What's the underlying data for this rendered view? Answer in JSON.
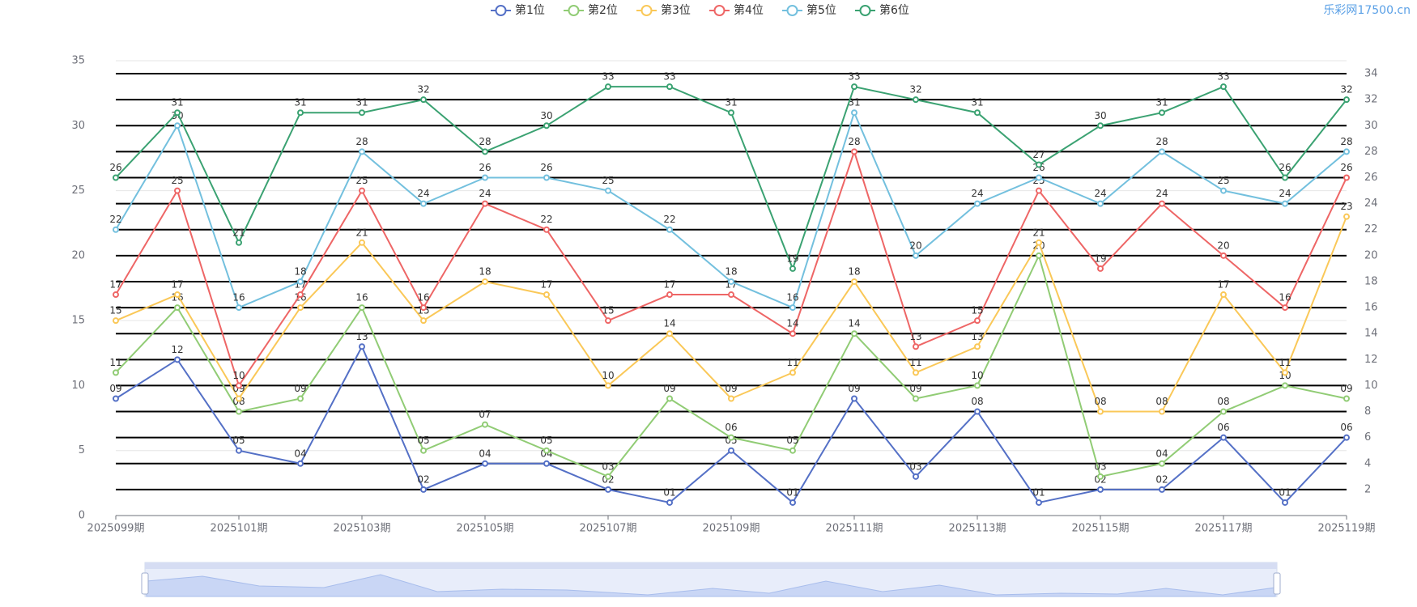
{
  "watermark": "乐彩网17500.cn",
  "chart_data": {
    "type": "line",
    "categories": [
      "2025099期",
      null,
      "2025101期",
      null,
      "2025103期",
      null,
      "2025105期",
      null,
      "2025107期",
      null,
      "2025109期",
      null,
      "2025111期",
      null,
      "2025113期",
      null,
      "2025115期",
      null,
      "2025117期",
      null,
      "2025119期"
    ],
    "series": [
      {
        "name": "第1位",
        "color": "#5470c6",
        "values": [
          9,
          12,
          5,
          4,
          13,
          2,
          4,
          4,
          2,
          1,
          5,
          1,
          9,
          3,
          8,
          1,
          2,
          2,
          6,
          1,
          6
        ],
        "value_labels": [
          "09",
          "12",
          "05",
          "04",
          "13",
          "02",
          "04",
          "04",
          "02",
          "01",
          "05",
          "01",
          "09",
          "03",
          "08",
          "01",
          "02",
          "02",
          "06",
          "01",
          "06"
        ]
      },
      {
        "name": "第2位",
        "color": "#91cc75",
        "values": [
          11,
          16,
          8,
          9,
          16,
          5,
          7,
          5,
          3,
          9,
          6,
          5,
          14,
          9,
          10,
          20,
          3,
          4,
          8,
          10,
          9
        ],
        "value_labels": [
          "11",
          "16",
          "08",
          "09",
          "16",
          "05",
          "07",
          "05",
          "03",
          "09",
          "06",
          "05",
          "14",
          "09",
          "10",
          "20",
          "03",
          "04",
          "08",
          "10",
          "09"
        ]
      },
      {
        "name": "第3位",
        "color": "#fac858",
        "values": [
          15,
          17,
          9,
          16,
          21,
          15,
          18,
          17,
          10,
          14,
          9,
          11,
          18,
          11,
          13,
          21,
          8,
          8,
          17,
          11,
          23
        ],
        "value_labels": [
          "15",
          "17",
          "09",
          "16",
          "21",
          "15",
          "18",
          "17",
          "10",
          "14",
          "09",
          "11",
          "18",
          "11",
          "13",
          "21",
          "08",
          "08",
          "17",
          "11",
          "23"
        ]
      },
      {
        "name": "第4位",
        "color": "#ee6666",
        "values": [
          17,
          25,
          10,
          17,
          25,
          16,
          24,
          22,
          15,
          17,
          17,
          14,
          28,
          13,
          15,
          25,
          19,
          24,
          20,
          16,
          26
        ],
        "value_labels": [
          "17",
          "25",
          "10",
          "17",
          "25",
          "16",
          "24",
          "22",
          "15",
          "17",
          "17",
          "14",
          "28",
          "13",
          "15",
          "25",
          "19",
          "24",
          "20",
          "16",
          "26"
        ]
      },
      {
        "name": "第5位",
        "color": "#73c0de",
        "values": [
          22,
          30,
          16,
          18,
          28,
          24,
          26,
          26,
          25,
          22,
          18,
          16,
          31,
          20,
          24,
          26,
          24,
          28,
          25,
          24,
          28
        ],
        "value_labels": [
          "22",
          "30",
          "16",
          "18",
          "28",
          "24",
          "26",
          "26",
          "25",
          "22",
          "18",
          "16",
          "31",
          "20",
          "24",
          "26",
          "24",
          "28",
          "25",
          "24",
          "28"
        ]
      },
      {
        "name": "第6位",
        "color": "#3ba272",
        "values": [
          26,
          31,
          21,
          31,
          31,
          32,
          28,
          30,
          33,
          33,
          31,
          19,
          33,
          32,
          31,
          27,
          30,
          31,
          33,
          26,
          32
        ],
        "value_labels": [
          "26",
          "31",
          "21",
          "31",
          "31",
          "32",
          "28",
          "30",
          "33",
          "33",
          "31",
          "19",
          "33",
          "32",
          "31",
          "27",
          "30",
          "31",
          "33",
          "26",
          "32"
        ]
      }
    ],
    "ylim": [
      0,
      35
    ],
    "yticks": [
      0,
      5,
      10,
      15,
      20,
      25,
      30,
      35
    ],
    "y2lim": [
      0,
      35
    ],
    "y2ticks": [
      2,
      4,
      6,
      8,
      10,
      12,
      14,
      16,
      18,
      20,
      22,
      24,
      26,
      28,
      30,
      32,
      34
    ],
    "grid": true
  }
}
